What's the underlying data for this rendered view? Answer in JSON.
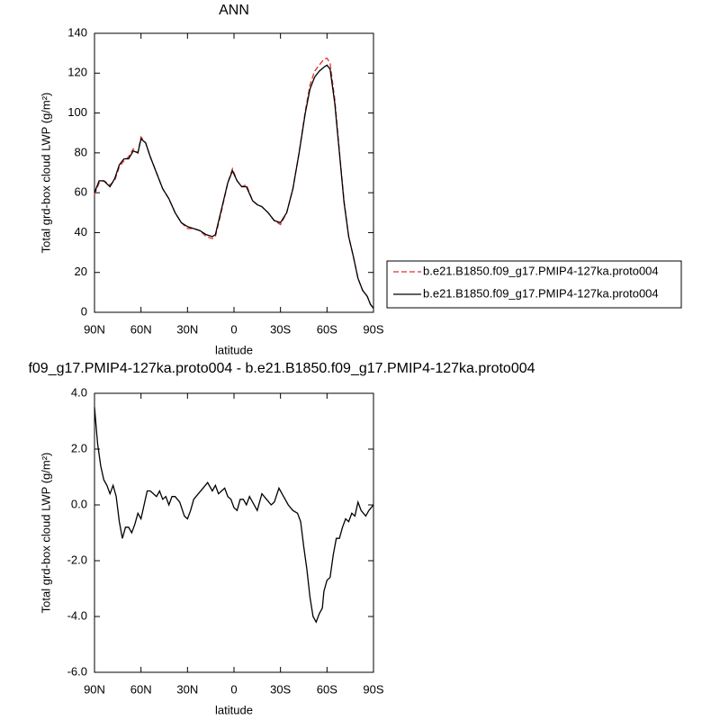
{
  "chart_data": [
    {
      "type": "line",
      "title": "ANN",
      "xlabel": "latitude",
      "ylabel": "Total grd-box cloud LWP (g/m²)",
      "xlim": [
        90,
        -90
      ],
      "xticks": [
        {
          "value": 90,
          "label": "90N"
        },
        {
          "value": 60,
          "label": "60N"
        },
        {
          "value": 30,
          "label": "30N"
        },
        0,
        {
          "value": -30,
          "label": "30S"
        },
        {
          "value": -60,
          "label": "60S"
        },
        {
          "value": -90,
          "label": "90S"
        }
      ],
      "ylim": [
        0,
        140
      ],
      "yticks": [
        0,
        20,
        40,
        60,
        80,
        100,
        120,
        140
      ],
      "legend": "right",
      "x": [
        90,
        87,
        84,
        80,
        77,
        74,
        71,
        68,
        65,
        62,
        60,
        57,
        54,
        50,
        46,
        42,
        38,
        34,
        30,
        26,
        22,
        18,
        14,
        12,
        8,
        4,
        1,
        -2,
        -5,
        -8,
        -12,
        -15,
        -18,
        -22,
        -26,
        -30,
        -34,
        -38,
        -42,
        -46,
        -49,
        -52,
        -55,
        -58,
        -60,
        -62,
        -65,
        -68,
        -71,
        -74,
        -77,
        -80,
        -83,
        -86,
        -88,
        -90
      ],
      "series": [
        {
          "name": "b.e21.B1850.f09_g17.PMIP4-127ka.proto004",
          "color": "#e0302f",
          "dash": true,
          "values": [
            59,
            65,
            66,
            64,
            66,
            73,
            76,
            78,
            82,
            80,
            88,
            85,
            78,
            70,
            62,
            57,
            50,
            45,
            42,
            42,
            41,
            38,
            37,
            38,
            51,
            65,
            72,
            66,
            63,
            64,
            56,
            54,
            53,
            50,
            46,
            44,
            50,
            62,
            80,
            101,
            114,
            121,
            124,
            127,
            127.5,
            125,
            107,
            81,
            56,
            38,
            28,
            17,
            11,
            8,
            4,
            2
          ]
        },
        {
          "name": "b.e21.B1850.f09_g17.PMIP4-127ka.proto004",
          "color": "#000000",
          "dash": false,
          "values": [
            60,
            66,
            66,
            63,
            67,
            74,
            77,
            77,
            81,
            80,
            87,
            85,
            78,
            70,
            62,
            57,
            50,
            45,
            43,
            42,
            41,
            39,
            38,
            39,
            52,
            65,
            71,
            66,
            63,
            63,
            56,
            54,
            53,
            50,
            46,
            45,
            50,
            62,
            80,
            100,
            112,
            118,
            121,
            123,
            124,
            122,
            105,
            80,
            55,
            38,
            28,
            17,
            11,
            8,
            4,
            2
          ]
        }
      ]
    },
    {
      "type": "line",
      "title": "f09_g17.PMIP4-127ka.proto004 - b.e21.B1850.f09_g17.PMIP4-127ka.proto004",
      "xlabel": "latitude",
      "ylabel": "Total grd-box cloud LWP (g/m²)",
      "xlim": [
        90,
        -90
      ],
      "xticks": [
        {
          "value": 90,
          "label": "90N"
        },
        {
          "value": 60,
          "label": "60N"
        },
        {
          "value": 30,
          "label": "30N"
        },
        0,
        {
          "value": -30,
          "label": "30S"
        },
        {
          "value": -60,
          "label": "60S"
        },
        {
          "value": -90,
          "label": "90S"
        }
      ],
      "ylim": [
        -6,
        4
      ],
      "yticks": [
        {
          "value": 4,
          "label": "4.0"
        },
        {
          "value": 2,
          "label": "2.0"
        },
        {
          "value": 0,
          "label": "0.0"
        },
        {
          "value": -2,
          "label": "-2.0"
        },
        {
          "value": -4,
          "label": "-4.0"
        },
        {
          "value": -6,
          "label": "-6.0"
        }
      ],
      "x": [
        90,
        88,
        86,
        84,
        82,
        80,
        78,
        76,
        74,
        72,
        70,
        68,
        66,
        64,
        62,
        60,
        58,
        56,
        54,
        52,
        50,
        48,
        46,
        44,
        42,
        40,
        38,
        35,
        32,
        30,
        28,
        26,
        23,
        20,
        17,
        14,
        12,
        10,
        8,
        6,
        4,
        2,
        0,
        -2,
        -4,
        -6,
        -8,
        -10,
        -12,
        -15,
        -18,
        -21,
        -24,
        -26,
        -29,
        -32,
        -35,
        -38,
        -41,
        -43,
        -45,
        -47,
        -49,
        -51,
        -53,
        -55,
        -57,
        -58,
        -60,
        -62,
        -64,
        -66,
        -68,
        -70,
        -72,
        -74,
        -76,
        -78,
        -80,
        -82,
        -85,
        -87,
        -90
      ],
      "series": [
        {
          "color": "#000000",
          "dash": false,
          "values": [
            3.5,
            2.2,
            1.4,
            0.9,
            0.7,
            0.4,
            0.7,
            0.3,
            -0.6,
            -1.2,
            -0.8,
            -0.8,
            -1.0,
            -0.7,
            -0.3,
            -0.5,
            0.0,
            0.5,
            0.5,
            0.4,
            0.3,
            0.5,
            0.2,
            0.3,
            0.0,
            0.3,
            0.3,
            0.1,
            -0.4,
            -0.5,
            -0.2,
            0.2,
            0.4,
            0.6,
            0.8,
            0.5,
            0.7,
            0.4,
            0.5,
            0.6,
            0.3,
            0.2,
            -0.1,
            -0.2,
            0.2,
            0.2,
            0.0,
            0.3,
            0.1,
            -0.2,
            0.4,
            0.2,
            0.0,
            0.1,
            0.6,
            0.3,
            0.0,
            -0.2,
            -0.3,
            -0.6,
            -1.5,
            -2.3,
            -3.3,
            -4.0,
            -4.2,
            -3.9,
            -3.7,
            -3.1,
            -2.7,
            -2.6,
            -1.8,
            -1.2,
            -1.2,
            -0.8,
            -0.5,
            -0.6,
            -0.3,
            -0.4,
            0.1,
            -0.2,
            -0.4,
            -0.2,
            0.0
          ]
        }
      ]
    }
  ]
}
